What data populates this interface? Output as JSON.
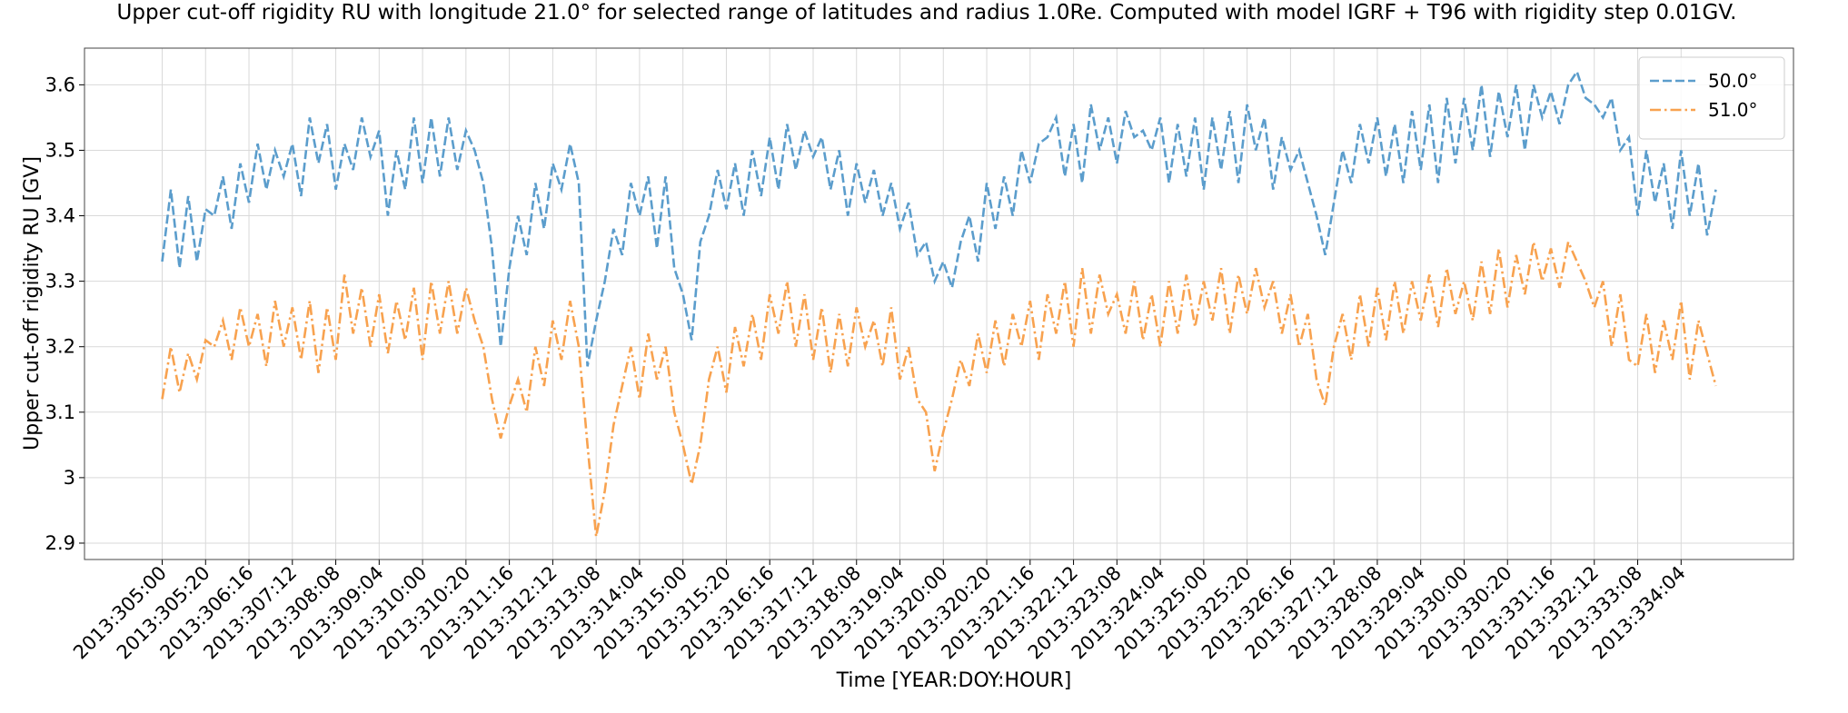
{
  "chart_data": {
    "type": "line",
    "title": "Upper cut-off rigidity RU with longitude 21.0° for selected range of latitudes and radius 1.0Re. Computed with model IGRF + T96 with rigidity step 0.01GV.",
    "x_label": "Time [YEAR:DOY:HOUR]",
    "y_label": "Upper cut-off rigidity RU [GV]",
    "x": [
      "2013:305:00",
      "2013:305:04",
      "2013:305:08",
      "2013:305:12",
      "2013:305:16",
      "2013:305:20",
      "2013:306:00",
      "2013:306:04",
      "2013:306:08",
      "2013:306:12",
      "2013:306:16",
      "2013:306:20",
      "2013:307:00",
      "2013:307:04",
      "2013:307:08",
      "2013:307:12",
      "2013:307:16",
      "2013:307:20",
      "2013:308:00",
      "2013:308:04",
      "2013:308:08",
      "2013:308:12",
      "2013:308:16",
      "2013:308:20",
      "2013:309:00",
      "2013:309:04",
      "2013:309:08",
      "2013:309:12",
      "2013:309:16",
      "2013:309:20",
      "2013:310:00",
      "2013:310:04",
      "2013:310:08",
      "2013:310:12",
      "2013:310:16",
      "2013:310:20",
      "2013:311:00",
      "2013:311:04",
      "2013:311:08",
      "2013:311:12",
      "2013:311:16",
      "2013:311:20",
      "2013:312:00",
      "2013:312:04",
      "2013:312:08",
      "2013:312:12",
      "2013:312:16",
      "2013:312:20",
      "2013:313:00",
      "2013:313:04",
      "2013:313:08",
      "2013:313:12",
      "2013:313:16",
      "2013:313:20",
      "2013:314:00",
      "2013:314:04",
      "2013:314:08",
      "2013:314:12",
      "2013:314:16",
      "2013:314:20",
      "2013:315:00",
      "2013:315:04",
      "2013:315:08",
      "2013:315:12",
      "2013:315:16",
      "2013:315:20",
      "2013:316:00",
      "2013:316:04",
      "2013:316:08",
      "2013:316:12",
      "2013:316:16",
      "2013:316:20",
      "2013:317:00",
      "2013:317:04",
      "2013:317:08",
      "2013:317:12",
      "2013:317:16",
      "2013:317:20",
      "2013:318:00",
      "2013:318:04",
      "2013:318:08",
      "2013:318:12",
      "2013:318:16",
      "2013:318:20",
      "2013:319:00",
      "2013:319:04",
      "2013:319:08",
      "2013:319:12",
      "2013:319:16",
      "2013:319:20",
      "2013:320:00",
      "2013:320:04",
      "2013:320:08",
      "2013:320:12",
      "2013:320:16",
      "2013:320:20",
      "2013:321:00",
      "2013:321:04",
      "2013:321:08",
      "2013:321:12",
      "2013:321:16",
      "2013:321:20",
      "2013:322:00",
      "2013:322:04",
      "2013:322:08",
      "2013:322:12",
      "2013:322:16",
      "2013:322:20",
      "2013:323:00",
      "2013:323:04",
      "2013:323:08",
      "2013:323:12",
      "2013:323:16",
      "2013:323:20",
      "2013:324:00",
      "2013:324:04",
      "2013:324:08",
      "2013:324:12",
      "2013:324:16",
      "2013:324:20",
      "2013:325:00",
      "2013:325:04",
      "2013:325:08",
      "2013:325:12",
      "2013:325:16",
      "2013:325:20",
      "2013:326:00",
      "2013:326:04",
      "2013:326:08",
      "2013:326:12",
      "2013:326:16",
      "2013:326:20",
      "2013:327:00",
      "2013:327:04",
      "2013:327:08",
      "2013:327:12",
      "2013:327:16",
      "2013:327:20",
      "2013:328:00",
      "2013:328:04",
      "2013:328:08",
      "2013:328:12",
      "2013:328:16",
      "2013:328:20",
      "2013:329:00",
      "2013:329:04",
      "2013:329:08",
      "2013:329:12",
      "2013:329:16",
      "2013:329:20",
      "2013:330:00",
      "2013:330:04",
      "2013:330:08",
      "2013:330:12",
      "2013:330:16",
      "2013:330:20",
      "2013:331:00",
      "2013:331:04",
      "2013:331:08",
      "2013:331:12",
      "2013:331:16",
      "2013:331:20",
      "2013:332:00",
      "2013:332:04",
      "2013:332:08",
      "2013:332:12",
      "2013:332:16",
      "2013:332:20",
      "2013:333:00",
      "2013:333:04",
      "2013:333:08",
      "2013:333:12",
      "2013:333:16",
      "2013:333:20",
      "2013:334:00",
      "2013:334:04",
      "2013:334:08",
      "2013:334:12",
      "2013:334:16",
      "2013:334:20"
    ],
    "series": [
      {
        "name": "50.0°",
        "color": "#5b9dcc",
        "linestyle": "dashed",
        "values": [
          3.33,
          3.44,
          3.32,
          3.43,
          3.33,
          3.41,
          3.4,
          3.46,
          3.38,
          3.48,
          3.42,
          3.51,
          3.44,
          3.5,
          3.46,
          3.51,
          3.43,
          3.55,
          3.48,
          3.54,
          3.44,
          3.51,
          3.47,
          3.55,
          3.49,
          3.53,
          3.4,
          3.5,
          3.44,
          3.55,
          3.45,
          3.55,
          3.46,
          3.55,
          3.47,
          3.53,
          3.5,
          3.45,
          3.35,
          3.2,
          3.32,
          3.4,
          3.34,
          3.45,
          3.38,
          3.48,
          3.44,
          3.51,
          3.45,
          3.17,
          3.24,
          3.3,
          3.38,
          3.34,
          3.45,
          3.4,
          3.46,
          3.35,
          3.46,
          3.32,
          3.28,
          3.21,
          3.36,
          3.4,
          3.47,
          3.41,
          3.48,
          3.4,
          3.5,
          3.43,
          3.52,
          3.44,
          3.54,
          3.47,
          3.53,
          3.49,
          3.52,
          3.44,
          3.5,
          3.4,
          3.48,
          3.42,
          3.47,
          3.4,
          3.45,
          3.38,
          3.42,
          3.34,
          3.36,
          3.3,
          3.33,
          3.29,
          3.36,
          3.4,
          3.33,
          3.45,
          3.38,
          3.46,
          3.4,
          3.5,
          3.45,
          3.51,
          3.52,
          3.55,
          3.46,
          3.54,
          3.45,
          3.57,
          3.5,
          3.55,
          3.48,
          3.56,
          3.52,
          3.53,
          3.5,
          3.55,
          3.45,
          3.54,
          3.46,
          3.55,
          3.44,
          3.55,
          3.47,
          3.56,
          3.45,
          3.57,
          3.5,
          3.55,
          3.44,
          3.52,
          3.47,
          3.5,
          3.45,
          3.4,
          3.34,
          3.42,
          3.5,
          3.45,
          3.54,
          3.48,
          3.55,
          3.46,
          3.54,
          3.45,
          3.56,
          3.47,
          3.57,
          3.45,
          3.58,
          3.48,
          3.58,
          3.5,
          3.6,
          3.49,
          3.59,
          3.52,
          3.6,
          3.5,
          3.6,
          3.55,
          3.59,
          3.54,
          3.6,
          3.62,
          3.58,
          3.57,
          3.55,
          3.58,
          3.5,
          3.52,
          3.4,
          3.5,
          3.42,
          3.48,
          3.38,
          3.5,
          3.4,
          3.48,
          3.37,
          3.44
        ]
      },
      {
        "name": "51.0°",
        "color": "#f8a24f",
        "linestyle": "dashdot",
        "values": [
          3.12,
          3.2,
          3.13,
          3.19,
          3.15,
          3.21,
          3.2,
          3.24,
          3.18,
          3.26,
          3.2,
          3.25,
          3.17,
          3.27,
          3.2,
          3.26,
          3.18,
          3.27,
          3.16,
          3.26,
          3.18,
          3.31,
          3.22,
          3.29,
          3.2,
          3.28,
          3.19,
          3.27,
          3.21,
          3.29,
          3.18,
          3.3,
          3.22,
          3.3,
          3.22,
          3.29,
          3.24,
          3.2,
          3.12,
          3.06,
          3.11,
          3.15,
          3.1,
          3.2,
          3.14,
          3.24,
          3.18,
          3.27,
          3.2,
          3.05,
          2.91,
          2.98,
          3.08,
          3.14,
          3.2,
          3.12,
          3.22,
          3.15,
          3.2,
          3.1,
          3.05,
          2.99,
          3.05,
          3.15,
          3.2,
          3.13,
          3.23,
          3.17,
          3.25,
          3.18,
          3.28,
          3.22,
          3.3,
          3.2,
          3.28,
          3.18,
          3.26,
          3.16,
          3.25,
          3.17,
          3.26,
          3.2,
          3.24,
          3.17,
          3.26,
          3.15,
          3.2,
          3.12,
          3.1,
          3.01,
          3.07,
          3.12,
          3.18,
          3.14,
          3.22,
          3.16,
          3.24,
          3.17,
          3.25,
          3.2,
          3.27,
          3.18,
          3.28,
          3.22,
          3.3,
          3.2,
          3.32,
          3.22,
          3.31,
          3.25,
          3.28,
          3.22,
          3.3,
          3.21,
          3.28,
          3.2,
          3.3,
          3.22,
          3.31,
          3.23,
          3.3,
          3.24,
          3.32,
          3.22,
          3.31,
          3.25,
          3.32,
          3.26,
          3.3,
          3.22,
          3.28,
          3.2,
          3.25,
          3.15,
          3.11,
          3.2,
          3.25,
          3.18,
          3.28,
          3.2,
          3.29,
          3.21,
          3.3,
          3.22,
          3.3,
          3.24,
          3.31,
          3.23,
          3.32,
          3.25,
          3.3,
          3.24,
          3.33,
          3.25,
          3.35,
          3.26,
          3.34,
          3.28,
          3.36,
          3.3,
          3.35,
          3.29,
          3.36,
          3.33,
          3.3,
          3.26,
          3.3,
          3.2,
          3.28,
          3.18,
          3.17,
          3.25,
          3.16,
          3.24,
          3.18,
          3.27,
          3.15,
          3.24,
          3.19,
          3.14
        ]
      }
    ],
    "xticks": [
      "2013:305:00",
      "2013:305:20",
      "2013:306:16",
      "2013:307:12",
      "2013:308:08",
      "2013:309:04",
      "2013:310:00",
      "2013:310:20",
      "2013:311:16",
      "2013:312:12",
      "2013:313:08",
      "2013:314:04",
      "2013:315:00",
      "2013:315:20",
      "2013:316:16",
      "2013:317:12",
      "2013:318:08",
      "2013:319:04",
      "2013:320:00",
      "2013:320:20",
      "2013:321:16",
      "2013:322:12",
      "2013:323:08",
      "2013:324:04",
      "2013:325:00",
      "2013:325:20",
      "2013:326:16",
      "2013:327:12",
      "2013:328:08",
      "2013:329:04",
      "2013:330:00",
      "2013:330:20",
      "2013:331:16",
      "2013:332:12",
      "2013:333:08",
      "2013:334:04"
    ],
    "ylim": [
      2.875,
      3.656
    ],
    "yticks": [
      2.9,
      3.0,
      3.1,
      3.2,
      3.3,
      3.4,
      3.5,
      3.6
    ],
    "grid": true,
    "legend": "upper right"
  }
}
